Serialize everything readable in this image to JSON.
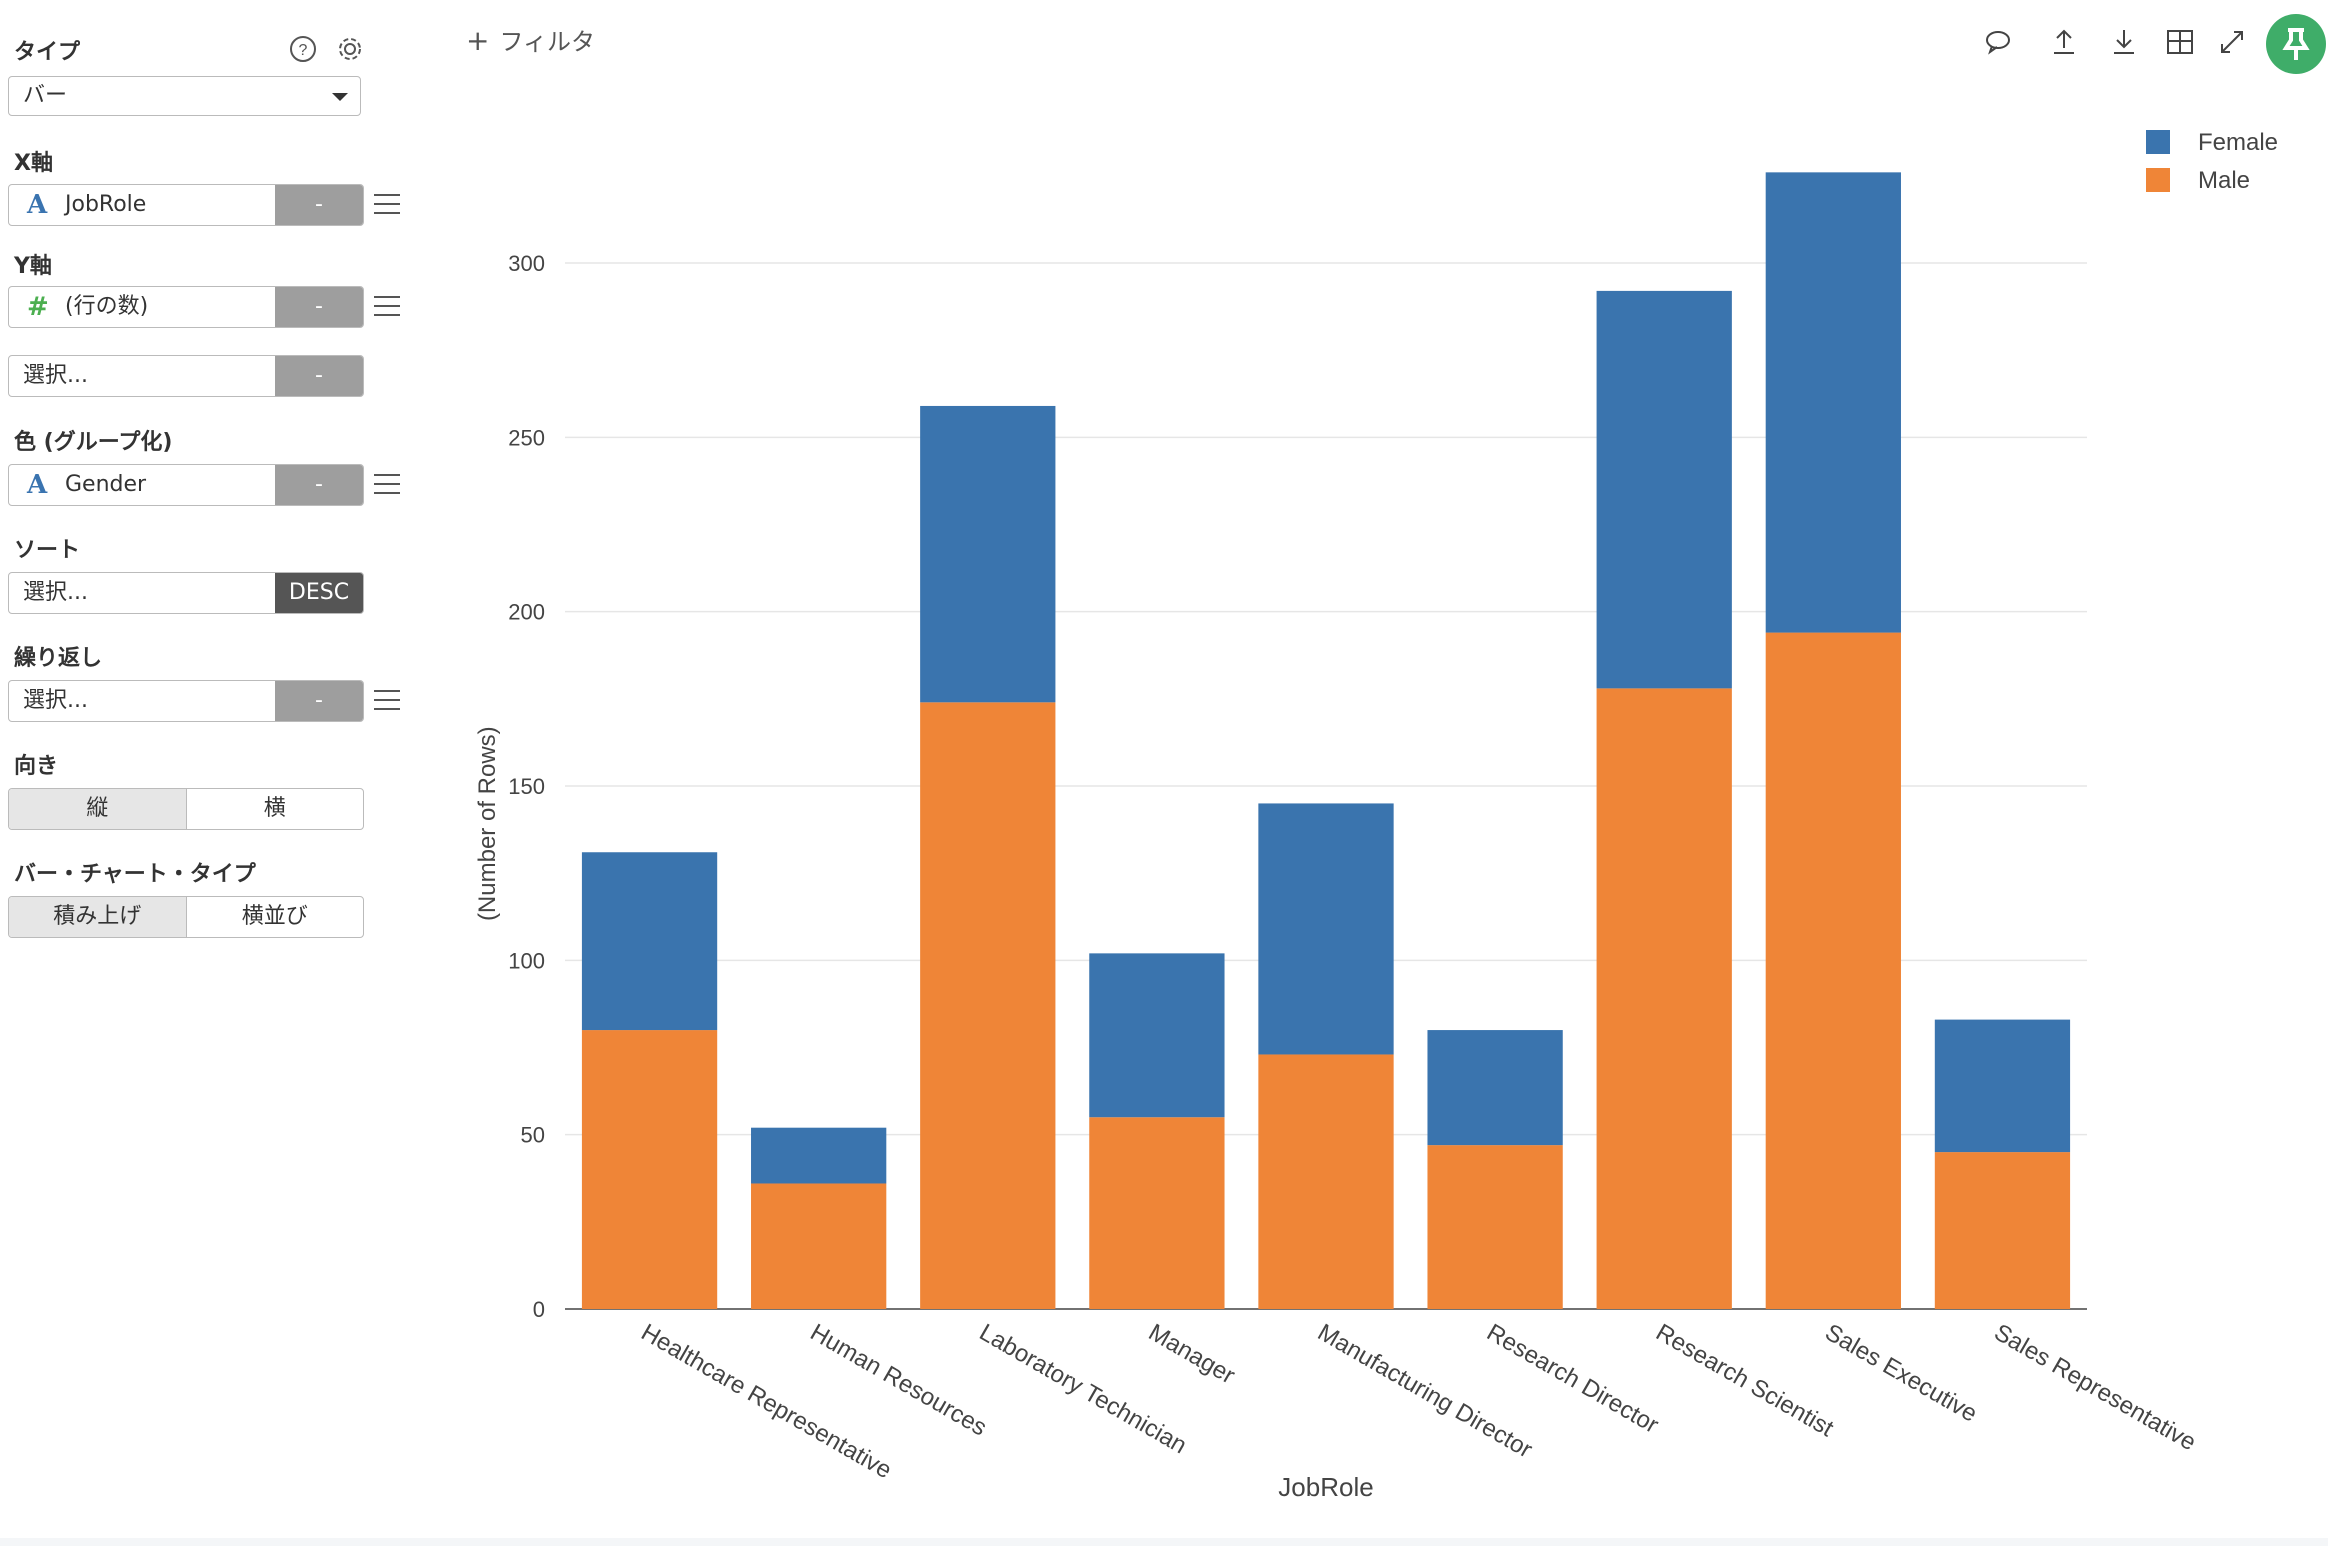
{
  "sidebar": {
    "type_title": "タイプ",
    "type_value": "バー",
    "x_title": "X軸",
    "x_field": {
      "type_glyph": "A",
      "label": "JobRole",
      "button": "-"
    },
    "y_title": "Y軸",
    "y_field": {
      "type_glyph": "#",
      "label": "(行の数)",
      "button": "-"
    },
    "y_field2": {
      "placeholder": "選択...",
      "button": "-"
    },
    "color_title": "色 (グループ化)",
    "color_field": {
      "type_glyph": "A",
      "label": "Gender",
      "button": "-"
    },
    "sort_title": "ソート",
    "sort_field": {
      "placeholder": "選択...",
      "button": "DESC"
    },
    "repeat_title": "繰り返し",
    "repeat_field": {
      "placeholder": "選択...",
      "button": "-"
    },
    "orient_title": "向き",
    "orient_options": [
      "縦",
      "横"
    ],
    "bartype_title": "バー・チャート・タイプ",
    "bartype_options": [
      "積み上げ",
      "横並び"
    ]
  },
  "topbar": {
    "filter_label": "フィルタ",
    "tools": [
      "comment-icon",
      "upload-icon",
      "download-icon",
      "table-icon",
      "expand-icon"
    ]
  },
  "colors": {
    "female": "#3a74ae",
    "male": "#ef8537",
    "pin": "#3fad69"
  },
  "chart_data": {
    "type": "bar",
    "stacked": true,
    "categories": [
      "Healthcare Representative",
      "Human Resources",
      "Laboratory Technician",
      "Manager",
      "Manufacturing Director",
      "Research Director",
      "Research Scientist",
      "Sales Executive",
      "Sales Representative"
    ],
    "series": [
      {
        "name": "Male",
        "values": [
          80,
          36,
          174,
          55,
          73,
          47,
          178,
          194,
          45
        ]
      },
      {
        "name": "Female",
        "values": [
          51,
          16,
          85,
          47,
          72,
          33,
          114,
          132,
          38
        ]
      }
    ],
    "legend_order": [
      "Female",
      "Male"
    ],
    "xlabel": "JobRole",
    "ylabel": "(Number of Rows)",
    "ylim": [
      0,
      330
    ],
    "yticks": [
      0,
      50,
      100,
      150,
      200,
      250,
      300
    ],
    "legend": "top-right",
    "grid": true
  }
}
